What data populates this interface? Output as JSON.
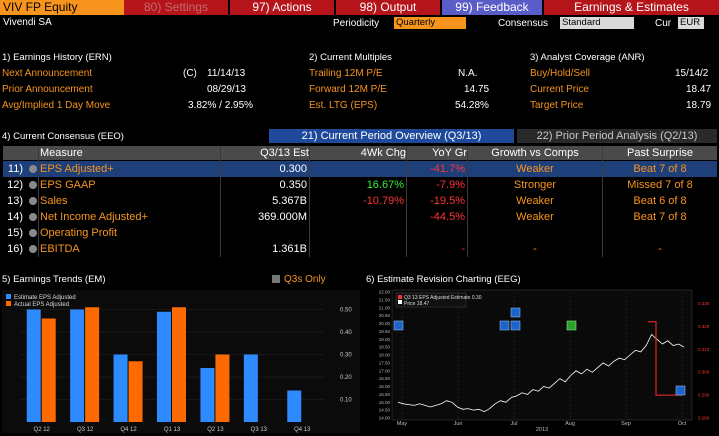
{
  "topbar": {
    "title": "VIV FP Equity",
    "settings": "80) Settings",
    "actions": "97) Actions",
    "output": "98) Output",
    "feedback": "99) Feedback",
    "earnings": "Earnings & Estimates"
  },
  "subbar": {
    "company": "Vivendi SA",
    "periodicity_label": "Periodicity",
    "periodicity_value": "Quarterly",
    "consensus_label": "Consensus",
    "consensus_value": "Standard",
    "cur_label": "Cur",
    "cur_value": "EUR"
  },
  "earnings_history": {
    "title": "1) Earnings History (ERN)",
    "next_label": "Next Announcement",
    "next_flag": "(C)",
    "next_value": "11/14/13",
    "prior_label": "Prior Announcement",
    "prior_value": "08/29/13",
    "avg_label": "Avg/Implied 1 Day Move",
    "avg_value": "3.82% / 2.95%"
  },
  "current_multiples": {
    "title": "2) Current Multiples",
    "trailing_label": "Trailing 12M P/E",
    "trailing_value": "N.A.",
    "forward_label": "Forward 12M P/E",
    "forward_value": "14.75",
    "ltg_label": "Est. LTG (EPS)",
    "ltg_value": "54.28%"
  },
  "analyst_coverage": {
    "title": "3) Analyst Coverage (ANR)",
    "bhs_label": "Buy/Hold/Sell",
    "bhs_value": "15/14/2",
    "price_label": "Current Price",
    "price_value": "18.47",
    "target_label": "Target Price",
    "target_value": "18.79"
  },
  "consensus": {
    "title": "4) Current Consensus (EEO)",
    "tab1": "21) Current Period Overview (Q3/13)",
    "tab2": "22) Prior Period Analysis (Q2/13)",
    "columns": [
      "Measure",
      "Q3/13 Est",
      "4Wk Chg",
      "YoY Gr",
      "Growth vs Comps",
      "Past Surprise"
    ],
    "rows": [
      {
        "num": "11)",
        "measure": "EPS Adjusted+",
        "est": "0.300",
        "chg": "",
        "yoy": "-41.7%",
        "growth": "Weaker",
        "surprise": "Beat 7 of 8",
        "chg_color": "",
        "selected": true
      },
      {
        "num": "12)",
        "measure": "EPS GAAP",
        "est": "0.350",
        "chg": "16.67%",
        "yoy": "-7.9%",
        "growth": "Stronger",
        "surprise": "Missed 7 of 8",
        "chg_color": "#33ee33",
        "selected": false
      },
      {
        "num": "13)",
        "measure": "Sales",
        "est": "5.367B",
        "chg": "-10.79%",
        "yoy": "-19.5%",
        "growth": "Weaker",
        "surprise": "Beat 6 of 8",
        "chg_color": "#ff3333",
        "selected": false
      },
      {
        "num": "14)",
        "measure": "Net Income Adjusted+",
        "est": "369.000M",
        "chg": "",
        "yoy": "-44.5%",
        "growth": "Weaker",
        "surprise": "Beat 7 of 8",
        "chg_color": "",
        "selected": false
      },
      {
        "num": "15)",
        "measure": "Operating Profit",
        "est": "",
        "chg": "",
        "yoy": "",
        "growth": "",
        "surprise": "",
        "chg_color": "",
        "selected": false
      },
      {
        "num": "16)",
        "measure": "EBITDA",
        "est": "1.361B",
        "chg": "",
        "yoy": "-",
        "growth": "-",
        "surprise": "-",
        "chg_color": "",
        "selected": false
      }
    ]
  },
  "trends": {
    "title": "5) Earnings Trends (EM)",
    "q3s_only": "Q3s Only",
    "legend_est": "Estimate EPS Adjusted",
    "legend_act": "Actual EPS Adjusted",
    "color_est": "#2e8bff",
    "color_act": "#ff6a00"
  },
  "revision": {
    "title": "6) Estimate Revision Charting (EEG)",
    "legend_est": "Q3 13 EPS Adjusted Estimate 0.30",
    "legend_price": "Price 18.47",
    "year_label": "2013"
  },
  "chart_data": [
    {
      "type": "bar",
      "categories": [
        "Q2 12",
        "Q3 12",
        "Q4 12",
        "Q1 13",
        "Q2 13",
        "Q3 13",
        "Q4 13"
      ],
      "series": [
        {
          "name": "Estimate EPS Adjusted",
          "values": [
            0.5,
            0.5,
            0.3,
            0.49,
            0.24,
            0.3,
            0.14
          ]
        },
        {
          "name": "Actual EPS Adjusted",
          "values": [
            0.46,
            0.51,
            0.27,
            0.51,
            0.3,
            null,
            null
          ]
        }
      ],
      "y_ticks": [
        "0.10",
        "0.20",
        "0.30",
        "0.40",
        "0.50"
      ],
      "ylim": [
        0,
        0.56
      ]
    },
    {
      "type": "line",
      "x_ticks": [
        "May",
        "Jun",
        "Jul",
        "Aug",
        "Sep",
        "Oct"
      ],
      "y_left_ticks": [
        "14.00",
        "14.50",
        "15.00",
        "15.50",
        "16.00",
        "16.50",
        "17.00",
        "17.50",
        "18.00",
        "18.50",
        "19.00",
        "19.50",
        "20.00",
        "20.50",
        "21.00",
        "21.50",
        "22.00"
      ],
      "y_right_ticks": [
        "0.280",
        "0.290",
        "0.300",
        "0.310",
        "0.320",
        "0.330"
      ],
      "price_series": [
        15.0,
        14.9,
        14.85,
        14.8,
        14.9,
        14.8,
        14.7,
        14.8,
        14.9,
        15.1,
        15.0,
        14.7,
        14.55,
        14.6,
        14.5,
        14.55,
        14.4,
        14.6,
        14.9,
        15.1,
        15.0,
        15.3,
        15.4,
        15.6,
        15.5,
        15.8,
        15.7,
        16.0,
        15.9,
        16.2,
        16.5,
        16.3,
        16.7,
        17.0,
        16.8,
        17.1,
        16.9,
        17.2,
        17.5,
        17.3,
        17.6,
        17.8,
        17.7,
        18.0,
        18.3,
        18.2,
        18.6,
        19.3,
        19.0,
        18.7,
        18.9,
        18.6,
        18.7,
        18.5
      ],
      "estimate_series": [
        0.322,
        0.322,
        0.29,
        0.29
      ],
      "ylim_left": [
        14,
        22
      ],
      "ylim_right": [
        0.28,
        0.335
      ]
    }
  ]
}
